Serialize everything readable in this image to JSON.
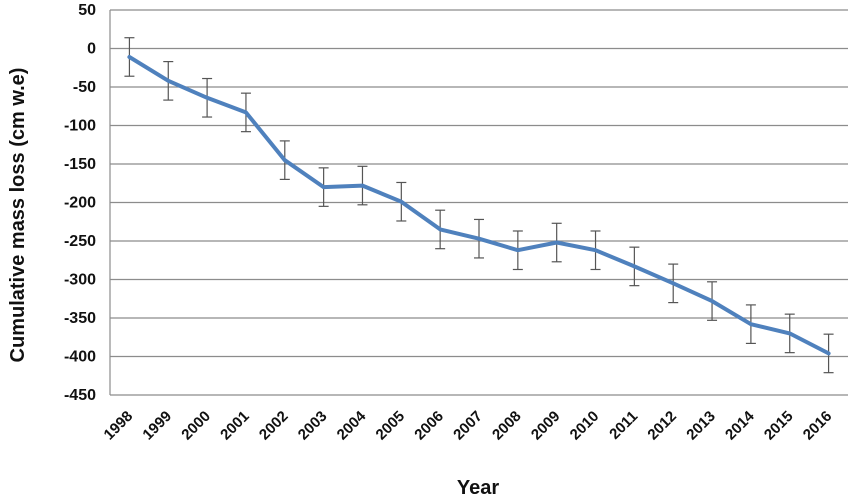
{
  "chart_data": {
    "type": "line",
    "title": "",
    "xlabel": "Year",
    "ylabel": "Cumulative mass loss (cm w.e)",
    "categories": [
      "1998",
      "1999",
      "2000",
      "2001",
      "2002",
      "2003",
      "2004",
      "2005",
      "2006",
      "2007",
      "2008",
      "2009",
      "2010",
      "2011",
      "2012",
      "2013",
      "2014",
      "2015",
      "2016"
    ],
    "series": [
      {
        "values": [
          -11,
          -42,
          -64,
          -83,
          -145,
          -180,
          -178,
          -199,
          -235,
          -247,
          -262,
          -252,
          -262,
          -283,
          -305,
          -328,
          -358,
          -370,
          -396
        ],
        "error": [
          25,
          25,
          25,
          25,
          25,
          25,
          25,
          25,
          25,
          25,
          25,
          25,
          25,
          25,
          25,
          25,
          25,
          25,
          25
        ]
      }
    ],
    "ylim": [
      -450,
      50
    ],
    "yticks": [
      "50",
      "0",
      "-50",
      "-100",
      "-150",
      "-200",
      "-250",
      "-300",
      "-350",
      "-400",
      "-450"
    ],
    "grid": true,
    "colors": {
      "line": "#4f81bd",
      "grid": "#8c8c8c",
      "errorbar": "#555555"
    }
  }
}
